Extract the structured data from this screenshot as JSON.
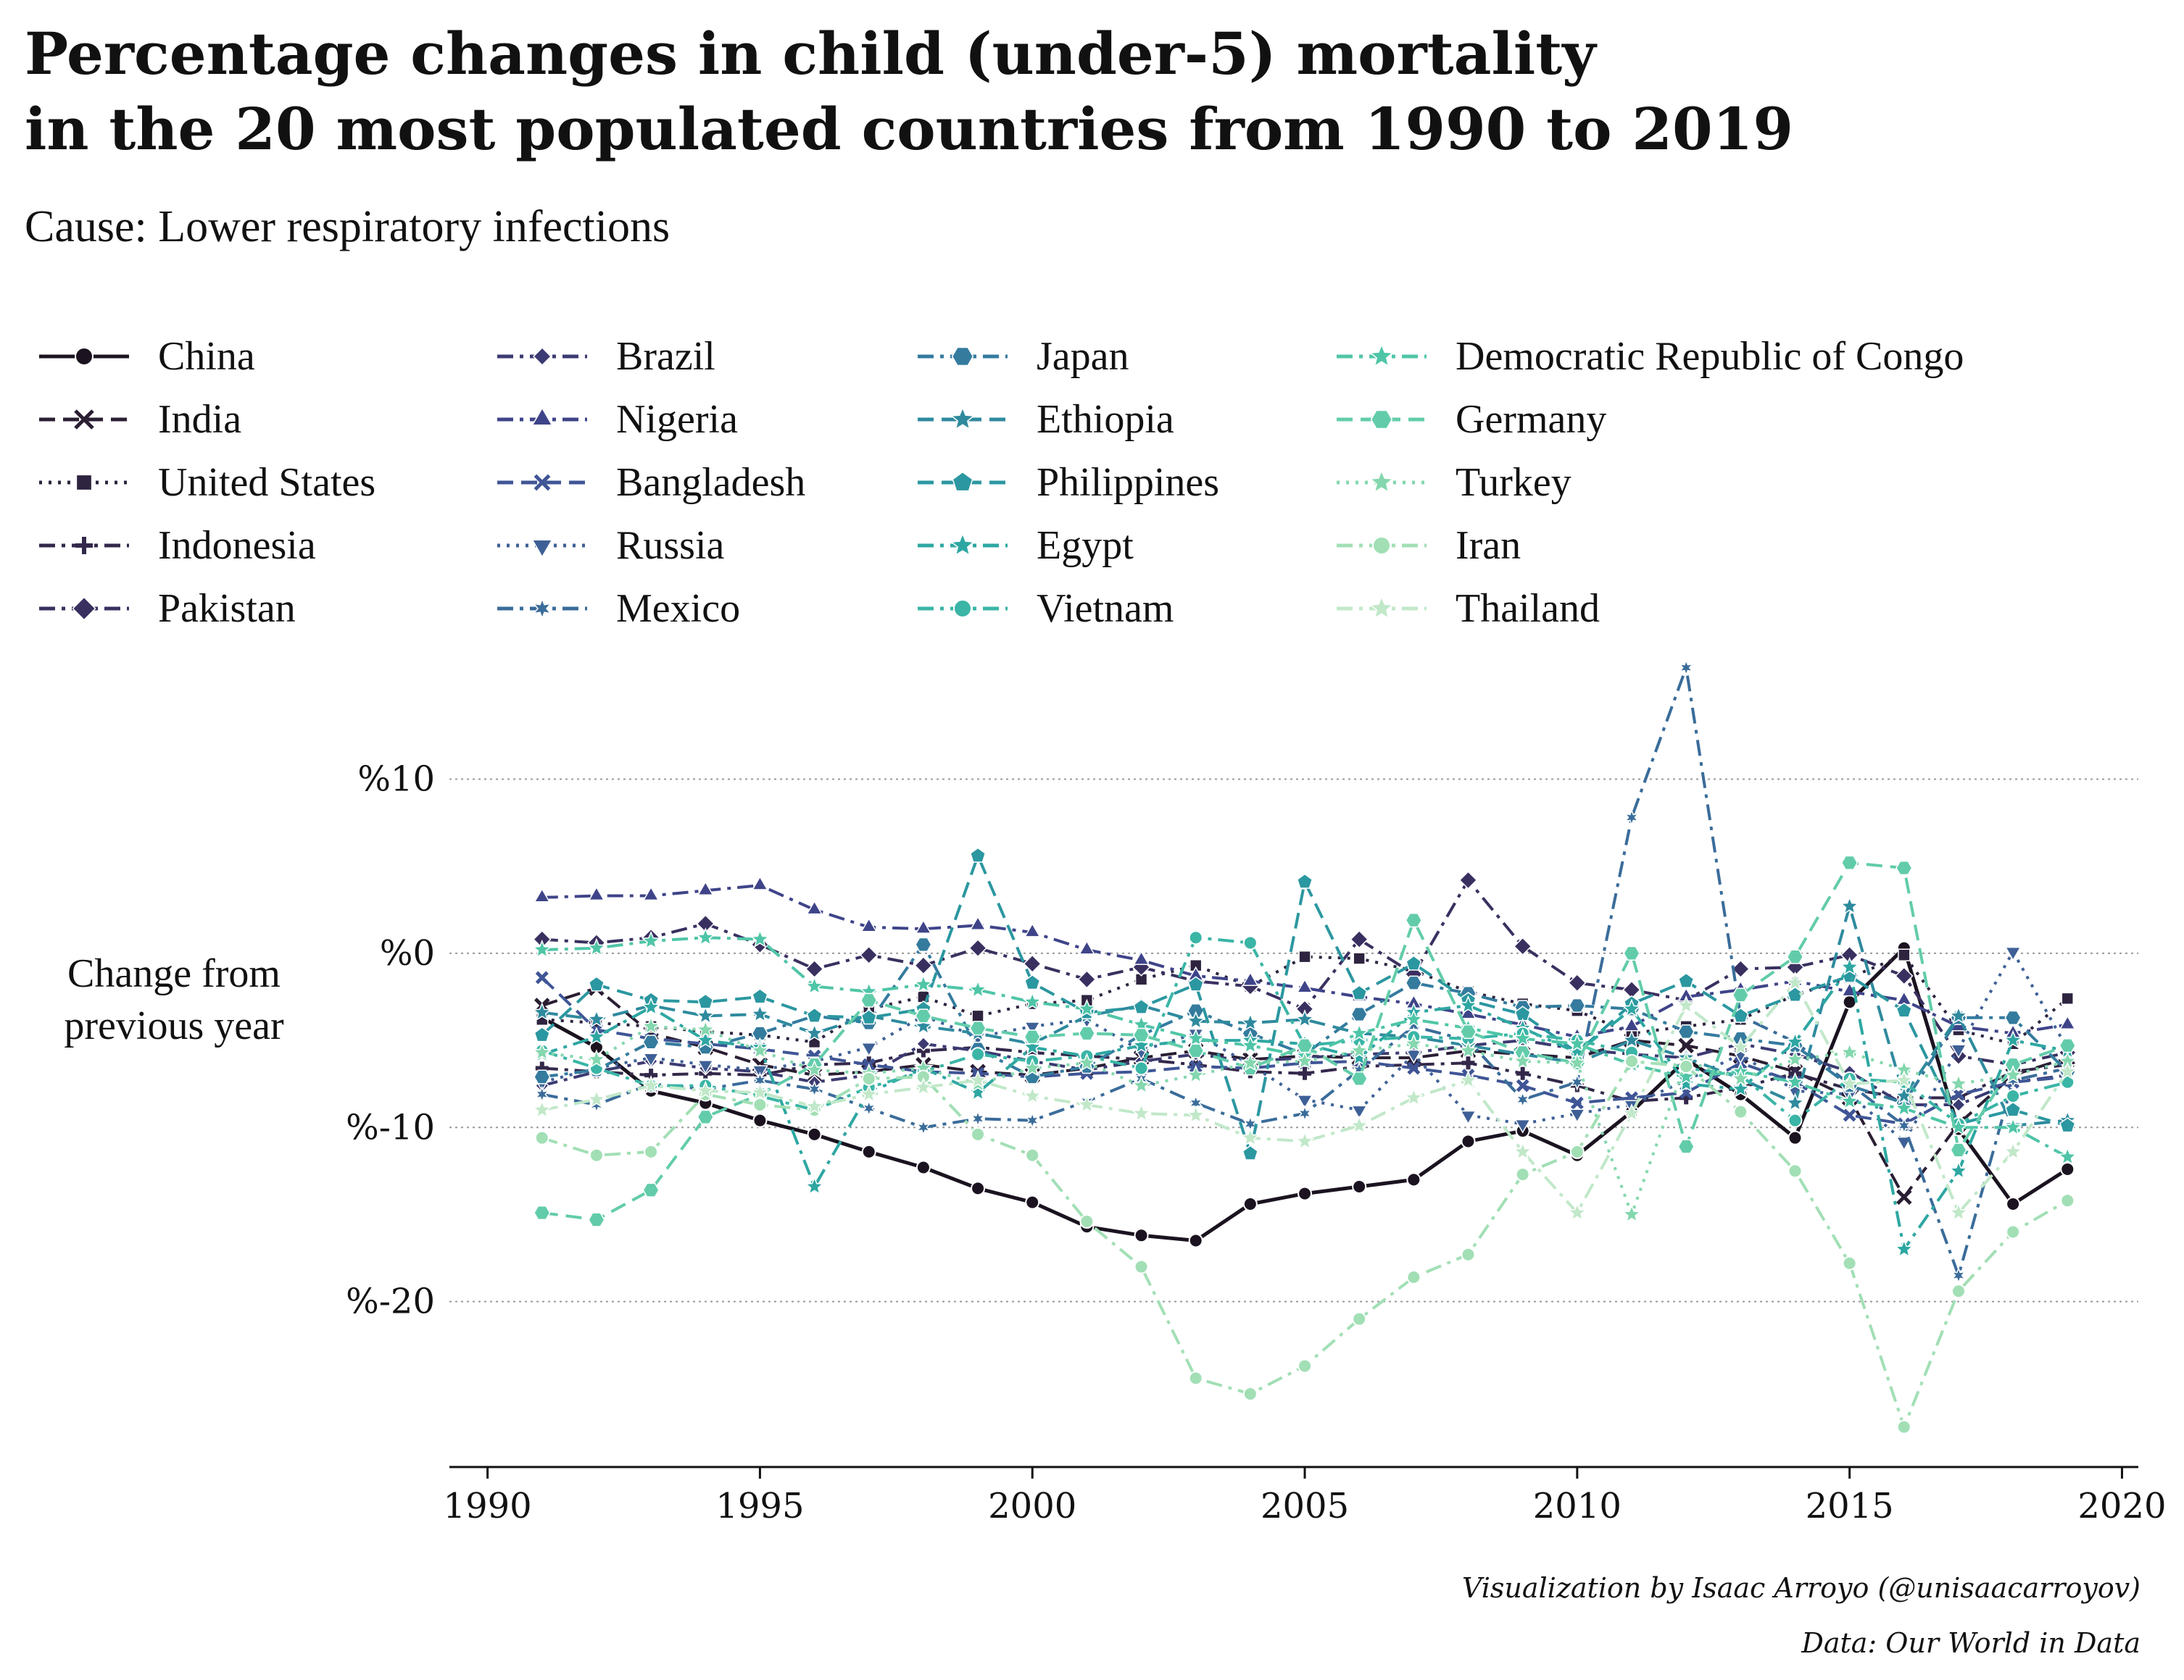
{
  "title_line1": "Percentage changes in child (under-5) mortality",
  "title_line2": "in the 20 most populated countries from 1990 to 2019",
  "subtitle": "Cause: Lower respiratory infections",
  "ylabel_line1": "Change from",
  "ylabel_line2": "previous year",
  "credit_viz": "Visualization by Isaac Arroyo (@unisaacarroyov)",
  "credit_data": "Data: Our World in Data",
  "chart_data": {
    "type": "line",
    "title": "Percentage changes in child (under-5) mortality in the 20 most populated countries from 1990 to 2019",
    "subtitle": "Cause: Lower respiratory infections",
    "xlabel": "",
    "ylabel": "Change from previous year",
    "x": [
      1991,
      1992,
      1993,
      1994,
      1995,
      1996,
      1997,
      1998,
      1999,
      2000,
      2001,
      2002,
      2003,
      2004,
      2005,
      2006,
      2007,
      2008,
      2009,
      2010,
      2011,
      2012,
      2013,
      2014,
      2015,
      2016,
      2017,
      2018,
      2019
    ],
    "xlim": [
      1989.3,
      2020.3
    ],
    "ylim": [
      -29.5,
      17.3
    ],
    "xticks": [
      1990,
      1995,
      2000,
      2005,
      2010,
      2015,
      2020
    ],
    "xtick_labels": [
      "1990",
      "1995",
      "2000",
      "2005",
      "2010",
      "2015",
      "2020"
    ],
    "yticks": [
      10,
      0,
      -10,
      -20
    ],
    "ytick_labels": [
      "%10",
      "%0",
      "%-10",
      "%-20"
    ],
    "grid": "horizontal dotted",
    "legend_position": "top, 4 columns",
    "series": [
      {
        "name": "China",
        "color": "#1b1320",
        "dash": "solid",
        "marker": "circle",
        "values": [
          -3.7,
          -5.4,
          -7.9,
          -8.6,
          -9.6,
          -10.4,
          -11.4,
          -12.3,
          -13.5,
          -14.3,
          -15.7,
          -16.2,
          -16.5,
          -14.4,
          -13.8,
          -13.4,
          -13.0,
          -10.8,
          -10.2,
          -11.6,
          -9.1,
          -6.1,
          -8.1,
          -10.6,
          -2.8,
          0.3,
          -10.1,
          -14.4,
          -12.4
        ]
      },
      {
        "name": "India",
        "color": "#2a1e33",
        "dash": "dashed",
        "marker": "x",
        "values": [
          -3.0,
          -2.0,
          -4.6,
          -5.4,
          -6.4,
          -7.0,
          -6.8,
          -6.4,
          -6.8,
          -7.0,
          -6.6,
          -6.0,
          -5.6,
          -6.1,
          -5.9,
          -6.0,
          -6.0,
          -5.6,
          -5.8,
          -6.0,
          -5.0,
          -5.3,
          -5.9,
          -6.8,
          -8.3,
          -14.0,
          -9.8,
          -7.0,
          -6.0
        ]
      },
      {
        "name": "United States",
        "color": "#2e2440",
        "dash": "dotted",
        "marker": "square",
        "values": [
          -3.8,
          -4.0,
          -4.2,
          -4.5,
          -4.7,
          -5.1,
          -3.2,
          -2.5,
          -3.6,
          -2.9,
          -2.7,
          -1.5,
          -0.7,
          -1.9,
          -0.2,
          -0.3,
          -1.0,
          -2.2,
          -2.9,
          -3.3,
          -4.6,
          -4.2,
          -3.8,
          -2.4,
          -1.4,
          -0.1,
          -4.4,
          -5.2,
          -2.6
        ]
      },
      {
        "name": "Indonesia",
        "color": "#33284a",
        "dash": "dashdot",
        "marker": "plus",
        "values": [
          -6.6,
          -6.8,
          -7.0,
          -6.9,
          -7.0,
          -6.4,
          -6.3,
          -5.6,
          -5.4,
          -5.7,
          -5.9,
          -6.1,
          -6.4,
          -6.8,
          -6.9,
          -6.5,
          -6.4,
          -6.3,
          -6.9,
          -7.6,
          -8.5,
          -8.3,
          -7.7,
          -6.9,
          -7.8,
          -8.3,
          -8.3,
          -6.8,
          -6.4
        ]
      },
      {
        "name": "Pakistan",
        "color": "#3a3060",
        "dash": "dashdot",
        "marker": "diamond",
        "values": [
          0.8,
          0.6,
          0.9,
          1.7,
          0.5,
          -0.9,
          -0.1,
          -0.7,
          0.3,
          -0.6,
          -1.5,
          -0.8,
          -1.6,
          -1.9,
          -3.2,
          0.8,
          -1.2,
          4.2,
          0.4,
          -1.7,
          -2.1,
          -2.7,
          -0.9,
          -0.8,
          -0.1,
          -1.3,
          -5.9,
          -6.4,
          -5.7
        ]
      },
      {
        "name": "Brazil",
        "color": "#3c3a72",
        "dash": "dashdot",
        "marker": "diamond_small",
        "values": [
          -7.6,
          -6.8,
          -6.2,
          -6.6,
          -6.8,
          -7.4,
          -7.0,
          -5.2,
          -5.6,
          -6.2,
          -6.7,
          -6.2,
          -5.8,
          -6.2,
          -6.0,
          -5.8,
          -5.7,
          -5.3,
          -5.0,
          -5.5,
          -5.8,
          -6.0,
          -5.2,
          -5.8,
          -6.8,
          -8.7,
          -8.7,
          -7.4,
          -7.0
        ]
      },
      {
        "name": "Nigeria",
        "color": "#3f4489",
        "dash": "dashdot",
        "marker": "triangle_up",
        "values": [
          3.2,
          3.3,
          3.3,
          3.6,
          3.9,
          2.5,
          1.5,
          1.4,
          1.6,
          1.2,
          0.2,
          -0.4,
          -1.3,
          -1.6,
          -2.0,
          -2.5,
          -2.9,
          -3.5,
          -4.1,
          -4.8,
          -4.2,
          -2.5,
          -2.1,
          -1.6,
          -2.2,
          -2.7,
          -4.2,
          -4.6,
          -4.1
        ]
      },
      {
        "name": "Bangladesh",
        "color": "#3f5596",
        "dash": "dashed",
        "marker": "x_small",
        "values": [
          -1.4,
          -4.4,
          -4.9,
          -5.2,
          -5.5,
          -5.9,
          -6.4,
          -6.8,
          -6.9,
          -7.1,
          -6.9,
          -6.8,
          -6.5,
          -6.6,
          -6.3,
          -6.2,
          -6.6,
          -7.0,
          -7.6,
          -8.6,
          -8.3,
          -8.0,
          -6.3,
          -7.4,
          -9.3,
          -9.8,
          -8.1,
          -7.4,
          -7.1
        ]
      },
      {
        "name": "Russia",
        "color": "#3e6096",
        "dash": "dotted",
        "marker": "triangle_down",
        "values": [
          -7.4,
          -6.6,
          -6.0,
          -6.4,
          -6.7,
          -6.2,
          -5.4,
          -3.6,
          -4.8,
          -4.2,
          -3.8,
          -5.6,
          -4.6,
          -6.4,
          -8.4,
          -9.0,
          -5.8,
          -9.3,
          -9.8,
          -9.2,
          -8.7,
          -7.3,
          -5.8,
          -7.9,
          -8.1,
          -10.8,
          -5.5,
          0.1,
          -5.5
        ]
      },
      {
        "name": "Mexico",
        "color": "#3a6c9a",
        "dash": "dashdot",
        "marker": "star_small",
        "values": [
          -8.1,
          -8.7,
          -7.5,
          -7.8,
          -7.3,
          -7.8,
          -8.9,
          -10.0,
          -9.5,
          -9.6,
          -8.5,
          -7.2,
          -8.6,
          -9.8,
          -9.2,
          -6.7,
          -4.2,
          -5.0,
          -8.4,
          -7.4,
          7.8,
          16.4,
          -3.6,
          -5.1,
          -7.5,
          -9.9,
          -18.5,
          -7.3,
          -6.6
        ]
      },
      {
        "name": "Japan",
        "color": "#347b9e",
        "dash": "dashdot",
        "marker": "hexagon",
        "values": [
          -7.1,
          -6.7,
          -5.1,
          -5.4,
          -4.6,
          -3.6,
          -4.0,
          0.5,
          -5.5,
          -7.1,
          -6.5,
          -4.7,
          -3.3,
          -4.6,
          -5.8,
          -3.5,
          -1.7,
          -2.3,
          -3.1,
          -3.0,
          -3.2,
          -4.5,
          -4.9,
          -5.3,
          -7.6,
          -8.6,
          -3.7,
          -3.7,
          -6.8
        ]
      },
      {
        "name": "Ethiopia",
        "color": "#2f8a9e",
        "dash": "dashed",
        "marker": "star",
        "values": [
          -3.4,
          -3.8,
          -3.0,
          -3.6,
          -3.5,
          -4.6,
          -3.6,
          -4.2,
          -4.6,
          -5.2,
          -3.6,
          -3.0,
          -3.9,
          -4.0,
          -3.8,
          -4.6,
          -4.8,
          -5.3,
          -5.8,
          -6.3,
          -5.0,
          -6.0,
          -7.2,
          -8.6,
          2.7,
          -8.2,
          -3.6,
          -9.9,
          -9.6
        ]
      },
      {
        "name": "Philippines",
        "color": "#2b97a0",
        "dash": "dashed",
        "marker": "pentagon",
        "values": [
          -4.7,
          -1.8,
          -2.7,
          -2.8,
          -2.5,
          -3.6,
          -3.7,
          -3.2,
          5.6,
          -1.7,
          -3.4,
          -3.1,
          -1.8,
          -11.5,
          4.1,
          -2.3,
          -0.6,
          -2.7,
          -3.5,
          -5.7,
          -2.9,
          -1.6,
          -3.6,
          -2.4,
          -1.3,
          -3.3,
          -9.8,
          -9.0,
          -9.9
        ]
      },
      {
        "name": "Egypt",
        "color": "#2ea7a2",
        "dash": "dashdot",
        "marker": "star",
        "values": [
          -5.8,
          -4.8,
          -3.1,
          -5.0,
          -5.4,
          -13.4,
          -8.0,
          -6.6,
          -8.0,
          -5.4,
          -5.9,
          -5.3,
          -5.0,
          -5.0,
          -5.2,
          -6.0,
          -3.4,
          -3.0,
          -4.3,
          -5.7,
          -3.2,
          -7.5,
          -7.8,
          -5.1,
          -0.8,
          -17.0,
          -12.5,
          -5.0,
          -5.6
        ]
      },
      {
        "name": "Vietnam",
        "color": "#3ab5a6",
        "dash": "dashdot",
        "marker": "circle",
        "values": [
          -5.6,
          -6.6,
          -7.6,
          -7.6,
          -8.2,
          -9.0,
          -7.7,
          -6.8,
          -5.8,
          -6.2,
          -5.9,
          -6.6,
          0.9,
          0.6,
          -5.3,
          -5.0,
          -4.8,
          -4.9,
          -4.6,
          -5.0,
          -5.7,
          -6.6,
          -7.0,
          -9.6,
          -7.2,
          -7.4,
          -9.8,
          -8.2,
          -7.4
        ]
      },
      {
        "name": "Democratic Republic of Congo",
        "color": "#4fc5a7",
        "dash": "dashdot",
        "marker": "star",
        "values": [
          0.2,
          0.3,
          0.7,
          0.9,
          0.8,
          -1.9,
          -2.2,
          -1.8,
          -2.1,
          -2.8,
          -3.2,
          -4.1,
          -4.9,
          -5.3,
          -5.9,
          -4.6,
          -3.8,
          -4.3,
          -4.9,
          -5.2,
          -6.4,
          -7.1,
          -6.8,
          -7.4,
          -8.5,
          -8.9,
          -10.0,
          -10.0,
          -11.7
        ]
      },
      {
        "name": "Germany",
        "color": "#62ccaa",
        "dash": "dashed",
        "marker": "hexagon",
        "values": [
          -14.9,
          -15.3,
          -13.6,
          -9.4,
          -8.1,
          -6.4,
          -2.7,
          -3.6,
          -4.3,
          -4.8,
          -4.6,
          -4.7,
          -5.6,
          -6.6,
          -5.3,
          -7.2,
          1.9,
          -4.5,
          -5.7,
          -6.3,
          0.0,
          -11.1,
          -2.4,
          -0.2,
          5.2,
          4.9,
          -11.3,
          -6.4,
          -5.3
        ]
      },
      {
        "name": "Turkey",
        "color": "#84d7ae",
        "dash": "dotted",
        "marker": "star",
        "values": [
          -5.7,
          -6.1,
          -4.2,
          -4.4,
          -5.6,
          -6.7,
          -6.9,
          -6.6,
          -7.5,
          -6.6,
          -6.3,
          -7.6,
          -7.0,
          -6.3,
          -6.2,
          -5.6,
          -5.2,
          -5.6,
          -6.2,
          -6.3,
          -15.0,
          -6.2,
          -7.2,
          -6.1,
          -5.7,
          -6.7,
          -7.5,
          -7.0,
          -6.2
        ]
      },
      {
        "name": "Iran",
        "color": "#a2dfb5",
        "dash": "dashdot",
        "marker": "circle",
        "values": [
          -10.6,
          -11.6,
          -11.4,
          -8.1,
          -8.7,
          -9.0,
          -7.2,
          -7.1,
          -10.4,
          -11.6,
          -15.4,
          -18.0,
          -24.4,
          -25.3,
          -23.7,
          -21.0,
          -18.6,
          -17.3,
          -12.7,
          -11.4,
          -6.2,
          -6.5,
          -9.1,
          -12.5,
          -17.8,
          -27.2,
          -19.4,
          -16.0,
          -14.2
        ]
      },
      {
        "name": "Thailand",
        "color": "#c1e8c9",
        "dash": "dashdot",
        "marker": "star",
        "values": [
          -9.0,
          -8.4,
          -7.6,
          -7.9,
          -8.0,
          -8.8,
          -8.1,
          -7.7,
          -7.3,
          -8.2,
          -8.7,
          -9.2,
          -9.3,
          -10.6,
          -10.8,
          -9.9,
          -8.3,
          -7.3,
          -11.4,
          -14.9,
          -9.2,
          -3.0,
          -5.4,
          -1.7,
          -7.5,
          -7.3,
          -14.9,
          -11.4,
          -6.8
        ]
      }
    ]
  }
}
